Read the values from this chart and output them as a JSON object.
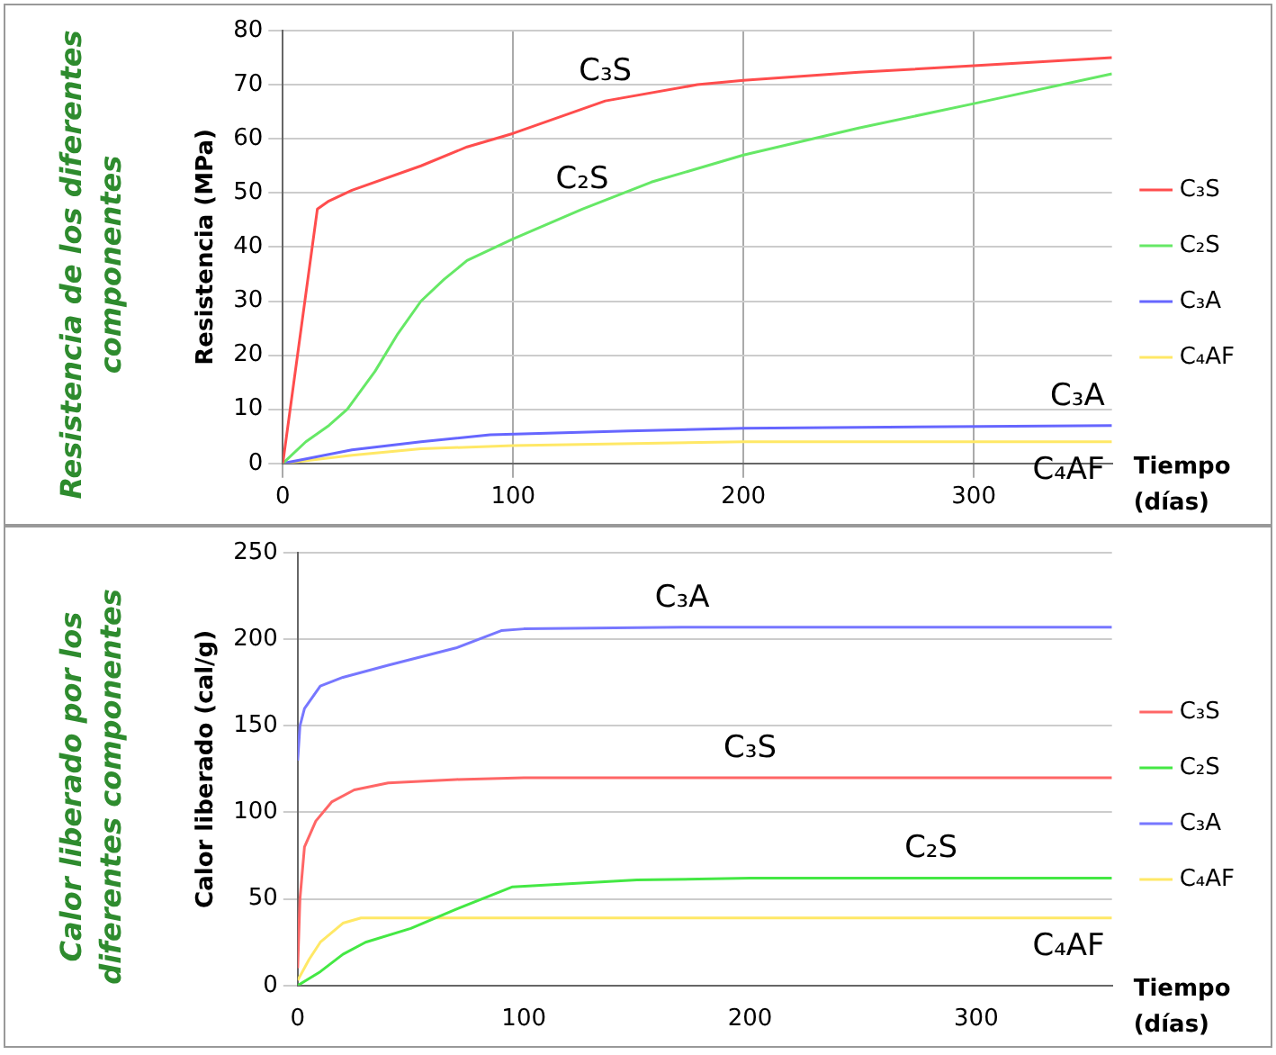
{
  "chart_data": [
    {
      "type": "line",
      "title": "Resistencia de los diferentes componentes",
      "ylabel": "Resistencia (MPa)",
      "xlabel": "Tiempo (días)",
      "xlim": [
        0,
        360
      ],
      "xticks": [
        0,
        100,
        200,
        300
      ],
      "ylim": [
        0,
        80
      ],
      "yticks": [
        0,
        10,
        20,
        30,
        40,
        50,
        60,
        70,
        80
      ],
      "grid": true,
      "legend": "right",
      "marker": "none",
      "line_style": "solid",
      "series": [
        {
          "name": "C₃S",
          "color": "#ff4d4d",
          "x": [
            0,
            15,
            20,
            30,
            60,
            80,
            100,
            140,
            180,
            200,
            250,
            300,
            360
          ],
          "values": [
            0,
            47,
            48.5,
            50.5,
            55,
            58.5,
            61,
            67,
            70,
            70.8,
            72.3,
            73.5,
            75
          ]
        },
        {
          "name": "C₂S",
          "color": "#66e866",
          "x": [
            0,
            10,
            20,
            28,
            40,
            50,
            60,
            70,
            80,
            100,
            130,
            160,
            200,
            250,
            300,
            360
          ],
          "values": [
            0,
            4,
            7,
            10,
            17,
            24,
            30,
            34,
            37.5,
            41.5,
            47,
            52,
            57,
            62,
            66.5,
            72
          ]
        },
        {
          "name": "C₃A",
          "color": "#6666ff",
          "x": [
            0,
            30,
            60,
            90,
            150,
            200,
            360
          ],
          "values": [
            0,
            2.5,
            4,
            5.3,
            6,
            6.5,
            7
          ]
        },
        {
          "name": "C₄AF",
          "color": "#ffe866",
          "x": [
            0,
            30,
            60,
            100,
            200,
            360
          ],
          "values": [
            0,
            1.5,
            2.7,
            3.3,
            4,
            4
          ]
        }
      ],
      "annotations": [
        {
          "text": "C₃S",
          "x": 140,
          "y": 67
        },
        {
          "text": "C₂S",
          "x": 130,
          "y": 47
        },
        {
          "text": "C₃A",
          "x": 360,
          "y": 7
        },
        {
          "text": "C₄AF",
          "x": 360,
          "y": 4
        }
      ]
    },
    {
      "type": "line",
      "title": "Calor liberado por los diferentes componentes",
      "ylabel": "Calor liberado (cal/g)",
      "xlabel": "Tiempo (días)",
      "xlim": [
        0,
        360
      ],
      "xticks": [
        0,
        100,
        200,
        300
      ],
      "ylim": [
        0,
        250
      ],
      "yticks": [
        0,
        50,
        100,
        150,
        200,
        250
      ],
      "grid": "y",
      "legend": "right",
      "marker": "none",
      "line_style": "solid",
      "series": [
        {
          "name": "C₃S",
          "color": "#ff6666",
          "x": [
            0,
            1,
            3,
            8,
            15,
            25,
            40,
            70,
            100,
            200,
            360
          ],
          "values": [
            10,
            50,
            80,
            95,
            106,
            113,
            117,
            119,
            120,
            120,
            120
          ]
        },
        {
          "name": "C₂S",
          "color": "#44e844",
          "x": [
            0,
            10,
            20,
            30,
            50,
            70,
            95,
            150,
            200,
            280,
            360
          ],
          "values": [
            0,
            8,
            18,
            25,
            33,
            44,
            57,
            61,
            62,
            62,
            62
          ]
        },
        {
          "name": "C₃A",
          "color": "#7777ff",
          "x": [
            0,
            1,
            3,
            10,
            20,
            40,
            70,
            90,
            100,
            170,
            200,
            360
          ],
          "values": [
            130,
            150,
            160,
            173,
            178,
            185,
            195,
            205,
            206,
            207,
            207,
            207
          ]
        },
        {
          "name": "C₄AF",
          "color": "#ffe866",
          "x": [
            0,
            5,
            10,
            20,
            28,
            360
          ],
          "values": [
            3,
            15,
            25,
            36,
            39,
            39
          ]
        }
      ],
      "annotations": [
        {
          "text": "C₃A",
          "x": 170,
          "y": 207
        },
        {
          "text": "C₃S",
          "x": 200,
          "y": 120
        },
        {
          "text": "C₂S",
          "x": 280,
          "y": 62
        },
        {
          "text": "C₄AF",
          "x": 360,
          "y": 39
        }
      ]
    }
  ]
}
